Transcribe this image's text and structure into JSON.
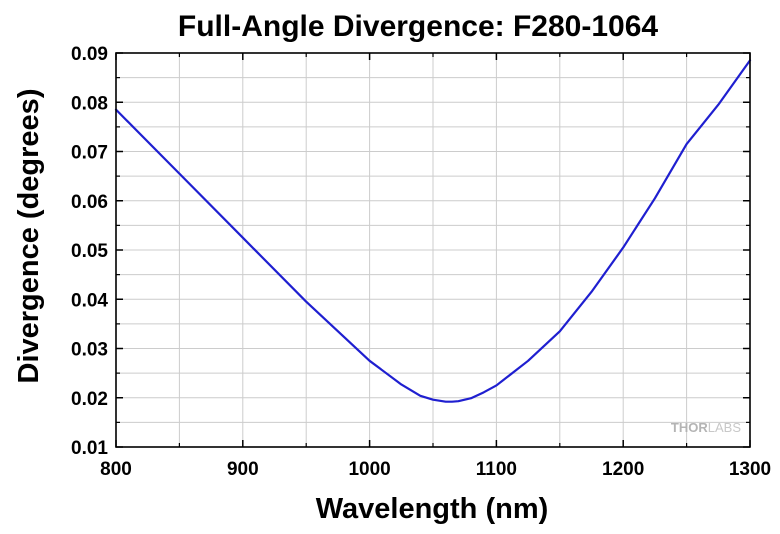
{
  "chart_data": {
    "type": "line",
    "title": "Full-Angle Divergence: F280-1064",
    "xlabel": "Wavelength (nm)",
    "ylabel": "Divergence (degrees)",
    "xlim": [
      800,
      1300
    ],
    "ylim": [
      0.01,
      0.09
    ],
    "x_ticks": [
      "800",
      "900",
      "1000",
      "1100",
      "1200",
      "1300"
    ],
    "y_ticks": [
      "0.01",
      "0.02",
      "0.03",
      "0.04",
      "0.05",
      "0.06",
      "0.07",
      "0.08",
      "0.09"
    ],
    "grid": true,
    "series": [
      {
        "color": "#1f1fd0",
        "x": [
          800,
          850,
          900,
          950,
          1000,
          1025,
          1040,
          1050,
          1060,
          1065,
          1070,
          1080,
          1090,
          1100,
          1125,
          1150,
          1175,
          1200,
          1225,
          1250,
          1275,
          1300
        ],
        "y": [
          0.0785,
          0.0655,
          0.0525,
          0.0395,
          0.0275,
          0.0227,
          0.0204,
          0.0196,
          0.0192,
          0.0192,
          0.0193,
          0.0199,
          0.0211,
          0.0225,
          0.0275,
          0.0335,
          0.0415,
          0.0505,
          0.0605,
          0.0715,
          0.0795,
          0.0885
        ]
      }
    ]
  },
  "watermark": {
    "part_a": "THOR",
    "part_b": "LABS"
  },
  "colors": {
    "grid": "#cccccc",
    "axes": "#000000",
    "line": "#1f1fd0"
  }
}
